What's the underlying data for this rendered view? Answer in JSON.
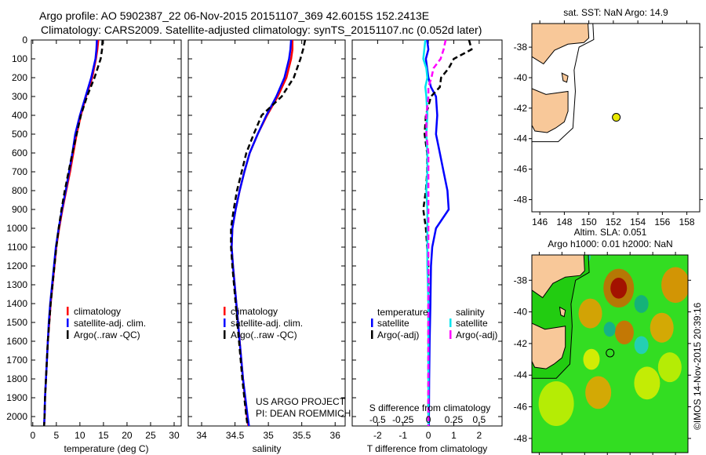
{
  "header": {
    "line1": "Argo profile: AO 5902387_22 06-Nov-2015 20151107_369 42.6015S 152.2413E",
    "line2": "Climatology: CARS2009. Satellite-adjusted climatology: synTS_20151107.nc (0.052d later)"
  },
  "chart_data": [
    {
      "type": "line",
      "id": "temperature",
      "xlabel": "temperature (deg C)",
      "ylabel": "",
      "xlim": [
        -0.3,
        31.5
      ],
      "ylim": [
        2050,
        0
      ],
      "xticks": [
        "0",
        "5",
        "10",
        "15",
        "20",
        "25",
        "30"
      ],
      "xtick_values": [
        0,
        5,
        10,
        15,
        20,
        25,
        30
      ],
      "yticks": [
        "0",
        "100",
        "200",
        "300",
        "400",
        "500",
        "600",
        "700",
        "800",
        "900",
        "1000",
        "1100",
        "1200",
        "1300",
        "1400",
        "1500",
        "1600",
        "1700",
        "1800",
        "1900",
        "2000"
      ],
      "depth": [
        0,
        50,
        100,
        200,
        300,
        400,
        500,
        600,
        700,
        800,
        900,
        1000,
        1100,
        1200,
        1300,
        1400,
        1500,
        1600,
        1700,
        1800,
        1900,
        2000,
        2050
      ],
      "series": [
        {
          "name": "climatology",
          "color": "#ff0000",
          "dash": false,
          "values": [
            13.9,
            13.7,
            13.4,
            12.6,
            11.3,
            10.2,
            9.3,
            8.6,
            7.9,
            7.1,
            6.3,
            5.6,
            5.0,
            4.6,
            4.2,
            3.8,
            3.5,
            3.2,
            3.0,
            2.8,
            2.6,
            2.5,
            2.4
          ]
        },
        {
          "name": "satellite-adj. clim.",
          "color": "#0000ff",
          "dash": false,
          "values": [
            13.6,
            13.5,
            13.3,
            12.4,
            11.2,
            10.0,
            9.0,
            8.4,
            7.7,
            7.0,
            6.2,
            5.5,
            4.9,
            4.5,
            4.1,
            3.7,
            3.4,
            3.2,
            3.0,
            2.8,
            2.6,
            2.5,
            2.4
          ]
        },
        {
          "name": "Argo(..raw -QC)",
          "color": "#000000",
          "dash": true,
          "values": [
            14.8,
            14.7,
            14.4,
            13.1,
            11.5,
            10.2,
            9.3,
            8.4,
            7.6,
            6.8,
            6.1,
            5.5,
            5.0,
            4.6,
            4.2,
            3.8,
            3.5,
            3.2,
            3.0,
            2.8,
            2.6,
            2.5,
            2.4
          ]
        }
      ]
    },
    {
      "type": "line",
      "id": "salinity",
      "xlabel": "salinity",
      "xlim": [
        33.8,
        36.15
      ],
      "ylim": [
        2050,
        0
      ],
      "xticks": [
        "34",
        "34.5",
        "35",
        "35.5",
        "36"
      ],
      "xtick_values": [
        34,
        34.5,
        35,
        35.5,
        36
      ],
      "depth": [
        0,
        50,
        100,
        200,
        300,
        400,
        500,
        600,
        700,
        800,
        900,
        1000,
        1100,
        1200,
        1400,
        1600,
        1800,
        2000,
        2050
      ],
      "series": [
        {
          "name": "climatology",
          "color": "#ff0000",
          "dash": false,
          "values": [
            35.36,
            35.36,
            35.34,
            35.27,
            35.14,
            34.98,
            34.84,
            34.72,
            34.64,
            34.57,
            34.51,
            34.46,
            34.45,
            34.47,
            34.52,
            34.57,
            34.62,
            34.68,
            34.7
          ]
        },
        {
          "name": "satellite-adj. clim.",
          "color": "#0000ff",
          "dash": false,
          "values": [
            35.34,
            35.33,
            35.31,
            35.24,
            35.12,
            34.97,
            34.84,
            34.72,
            34.64,
            34.57,
            34.51,
            34.46,
            34.45,
            34.47,
            34.52,
            34.57,
            34.62,
            34.69,
            34.71
          ]
        },
        {
          "name": "Argo(..raw -QC)",
          "color": "#000000",
          "dash": true,
          "values": [
            35.55,
            35.52,
            35.48,
            35.38,
            35.2,
            34.9,
            34.78,
            34.67,
            34.6,
            34.53,
            34.48,
            34.44,
            34.44,
            34.46,
            34.51,
            34.56,
            34.61,
            34.67,
            34.69
          ]
        }
      ],
      "annotation": [
        "US ARGO PROJECT",
        "PI: DEAN ROEMMICH"
      ]
    },
    {
      "type": "line",
      "id": "difference",
      "xlabel": "T difference from climatology",
      "x2label": "S difference from climatology",
      "xlim": [
        -3.0,
        2.9
      ],
      "ylim": [
        2050,
        0
      ],
      "xticks": [
        "-2",
        "-1",
        "0",
        "1",
        "2"
      ],
      "xtick_values": [
        -2,
        -1,
        0,
        1,
        2
      ],
      "x2ticks": [
        "-0.5",
        "-0.25",
        "0",
        "0.25",
        "0.5"
      ],
      "x2tick_values": [
        -0.5,
        -0.25,
        0,
        0.25,
        0.5
      ],
      "depth": [
        0,
        50,
        100,
        150,
        200,
        250,
        300,
        400,
        500,
        600,
        700,
        800,
        900,
        1000,
        1100,
        1200,
        1400,
        1600,
        1800,
        2000,
        2050
      ],
      "series": [
        {
          "name": "temperature satellite",
          "color": "#0000ff",
          "dash": false,
          "unit": "T",
          "values": [
            -0.05,
            0.0,
            -0.1,
            -0.05,
            0.0,
            0.1,
            0.3,
            0.35,
            0.3,
            0.45,
            0.6,
            0.75,
            0.8,
            0.3,
            0.15,
            0.1,
            0.08,
            0.05,
            0.03,
            0.02,
            0.02
          ]
        },
        {
          "name": "temperature Argo(-adj)",
          "color": "#000000",
          "dash": true,
          "unit": "T",
          "values": [
            1.6,
            1.7,
            1.0,
            0.8,
            0.5,
            0.45,
            0.1,
            -0.1,
            -0.15,
            -0.05,
            -0.05,
            -0.1,
            -0.2,
            -0.1,
            -0.05,
            0.0,
            0.0,
            0.0,
            0.0,
            0.0,
            0.0
          ]
        },
        {
          "name": "salinity satellite",
          "color": "#00e5ee",
          "dash": false,
          "unit": "S",
          "values": [
            -0.03,
            -0.04,
            -0.05,
            -0.02,
            -0.01,
            -0.03,
            -0.02,
            -0.01,
            -0.02,
            -0.01,
            -0.01,
            -0.02,
            -0.01,
            -0.01,
            -0.01,
            -0.01,
            0.0,
            0.0,
            0.0,
            0.0,
            0.0
          ]
        },
        {
          "name": "salinity Argo(-adj)",
          "color": "#ff00ff",
          "dash": true,
          "unit": "S",
          "values": [
            0.17,
            0.15,
            0.12,
            0.05,
            0.03,
            0.0,
            0.0,
            -0.02,
            -0.02,
            0.0,
            0.0,
            0.0,
            0.0,
            0.0,
            0.0,
            0.0,
            0.0,
            0.0,
            0.0,
            0.0,
            0.0
          ]
        }
      ],
      "legend": {
        "temperature_title": "temperature",
        "salinity_title": "salinity",
        "satellite": "satellite",
        "argo": "Argo(-adj)"
      }
    }
  ],
  "legend_labels": [
    "climatology",
    "satellite-adj. clim.",
    "Argo(..raw -QC)"
  ],
  "map_sst": {
    "title": "sat. SST: NaN Argo: 14.9",
    "lon_ticks": [
      "146",
      "148",
      "150",
      "152",
      "154",
      "156",
      "158"
    ],
    "lat_ticks": [
      "-38",
      "-40",
      "-42",
      "-44",
      "-46",
      "-48"
    ],
    "profile_lon": 152.24,
    "profile_lat": -42.6,
    "marker_color": "#e8e800",
    "land_color": "#f8c899"
  },
  "map_sla": {
    "title1": "Altim. SLA: 0.051",
    "title2": "Argo h1000: 0.01 h2000: NaN",
    "lon_ticks": [
      "146",
      "148",
      "150",
      "152",
      "154",
      "156",
      "158"
    ],
    "lat_ticks": [
      "-38",
      "-40",
      "-42",
      "-44",
      "-46",
      "-48"
    ],
    "profile_lon": 152.24,
    "profile_lat": -42.6,
    "credit": "©IMOS 14-Nov-2015 20:39:16",
    "background_color": "#33dd22"
  }
}
